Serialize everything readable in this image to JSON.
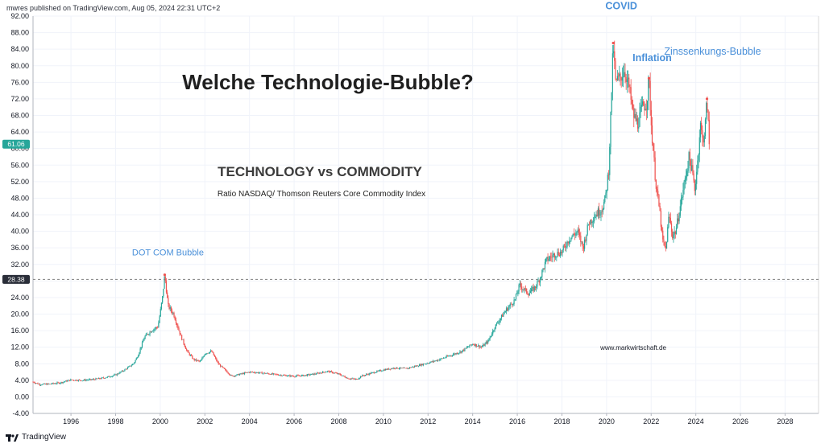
{
  "header": {
    "publisher_line": "mwres published on TradingView.com, Aug 05, 2024 22:31 UTC+2"
  },
  "footer": {
    "brand": "TradingView"
  },
  "colors": {
    "up": "#26a69a",
    "down": "#ef5350",
    "annotation": "#4a90d9",
    "title": "#1f1f1f",
    "last_price_badge": "#26a69a",
    "ref_badge": "#2a2e39",
    "dashed_line": "#7f7f7f"
  },
  "chart_data": {
    "type": "candlestick",
    "title": "Welche Technologie-Bubble?",
    "subtitle": "TECHNOLOGY vs COMMODITY",
    "description": "Ratio NASDAQ/ Thomson Reuters Core Commodity Index",
    "watermark": "www.markwirtschaft.de",
    "x_axis": {
      "range": [
        1994.3,
        2029.5
      ],
      "ticks": [
        "1996",
        "1998",
        "2000",
        "2002",
        "2004",
        "2006",
        "2008",
        "2010",
        "2012",
        "2014",
        "2016",
        "2018",
        "2020",
        "2022",
        "2024",
        "2026",
        "2028"
      ]
    },
    "y_axis": {
      "range": [
        -4,
        92
      ],
      "position": "left",
      "ticks": [
        "92.00",
        "88.00",
        "84.00",
        "80.00",
        "76.00",
        "72.00",
        "68.00",
        "64.00",
        "60.00",
        "56.00",
        "52.00",
        "48.00",
        "44.00",
        "40.00",
        "36.00",
        "32.00",
        "28.00",
        "24.00",
        "20.00",
        "16.00",
        "12.00",
        "8.00",
        "4.00",
        "0.00",
        "-4.00"
      ]
    },
    "last_price": {
      "value": 61.06,
      "label": "61.06"
    },
    "reference_line": {
      "value": 28.38,
      "label": "28.38",
      "style": "dashed"
    },
    "annotations": [
      {
        "text": "DOT COM Bubble",
        "x": 2000.2,
        "y": 29.5
      },
      {
        "text": "COVID",
        "x": 2020.3,
        "y": 85.5
      },
      {
        "text": "Inflation",
        "x": 2021.9,
        "y": 77.0
      },
      {
        "text": "Zinssenkungs-Bubble",
        "x": 2024.5,
        "y": 72.0
      }
    ],
    "path": [
      [
        1994.3,
        3.6
      ],
      [
        1994.6,
        3.0
      ],
      [
        1995.0,
        3.1
      ],
      [
        1995.5,
        3.4
      ],
      [
        1996.0,
        4.1
      ],
      [
        1996.5,
        4.0
      ],
      [
        1997.0,
        4.2
      ],
      [
        1997.5,
        4.6
      ],
      [
        1998.0,
        5.3
      ],
      [
        1998.4,
        6.5
      ],
      [
        1998.8,
        8.0
      ],
      [
        1999.0,
        10.0
      ],
      [
        1999.3,
        14.5
      ],
      [
        1999.6,
        16.0
      ],
      [
        1999.9,
        17.0
      ],
      [
        2000.1,
        24.0
      ],
      [
        2000.2,
        29.5
      ],
      [
        2000.35,
        22.0
      ],
      [
        2000.6,
        20.0
      ],
      [
        2000.9,
        15.0
      ],
      [
        2001.2,
        11.0
      ],
      [
        2001.5,
        9.0
      ],
      [
        2001.8,
        8.5
      ],
      [
        2002.0,
        10.5
      ],
      [
        2002.3,
        11.0
      ],
      [
        2002.6,
        8.0
      ],
      [
        2002.9,
        6.5
      ],
      [
        2003.2,
        5.0
      ],
      [
        2003.6,
        5.5
      ],
      [
        2004.0,
        6.0
      ],
      [
        2004.5,
        5.8
      ],
      [
        2005.0,
        5.5
      ],
      [
        2005.5,
        5.2
      ],
      [
        2006.0,
        5.0
      ],
      [
        2006.5,
        5.2
      ],
      [
        2007.0,
        5.6
      ],
      [
        2007.5,
        6.2
      ],
      [
        2008.0,
        5.5
      ],
      [
        2008.4,
        4.5
      ],
      [
        2008.8,
        4.2
      ],
      [
        2009.0,
        5.0
      ],
      [
        2009.5,
        5.8
      ],
      [
        2010.0,
        6.5
      ],
      [
        2010.5,
        7.0
      ],
      [
        2011.0,
        6.8
      ],
      [
        2011.5,
        7.5
      ],
      [
        2012.0,
        8.2
      ],
      [
        2012.5,
        9.0
      ],
      [
        2013.0,
        10.0
      ],
      [
        2013.5,
        11.0
      ],
      [
        2014.0,
        12.8
      ],
      [
        2014.4,
        12.0
      ],
      [
        2014.7,
        13.5
      ],
      [
        2015.0,
        17.0
      ],
      [
        2015.5,
        21.0
      ],
      [
        2015.9,
        23.5
      ],
      [
        2016.1,
        27.0
      ],
      [
        2016.5,
        25.0
      ],
      [
        2016.8,
        26.5
      ],
      [
        2017.0,
        28.5
      ],
      [
        2017.3,
        33.0
      ],
      [
        2017.7,
        34.5
      ],
      [
        2018.0,
        35.0
      ],
      [
        2018.3,
        38.0
      ],
      [
        2018.7,
        40.0
      ],
      [
        2018.95,
        36.0
      ],
      [
        2019.2,
        42.0
      ],
      [
        2019.5,
        44.0
      ],
      [
        2019.8,
        45.5
      ],
      [
        2019.95,
        48.0
      ],
      [
        2020.1,
        55.0
      ],
      [
        2020.2,
        70.0
      ],
      [
        2020.3,
        85.5
      ],
      [
        2020.4,
        76.0
      ],
      [
        2020.6,
        77.0
      ],
      [
        2020.8,
        79.0
      ],
      [
        2021.0,
        75.0
      ],
      [
        2021.2,
        68.0
      ],
      [
        2021.4,
        66.0
      ],
      [
        2021.6,
        70.0
      ],
      [
        2021.8,
        71.0
      ],
      [
        2021.9,
        77.0
      ],
      [
        2022.0,
        66.0
      ],
      [
        2022.2,
        52.0
      ],
      [
        2022.4,
        44.0
      ],
      [
        2022.5,
        38.0
      ],
      [
        2022.65,
        35.5
      ],
      [
        2022.8,
        44.0
      ],
      [
        2022.95,
        39.0
      ],
      [
        2023.1,
        40.0
      ],
      [
        2023.3,
        46.0
      ],
      [
        2023.5,
        52.0
      ],
      [
        2023.7,
        58.0
      ],
      [
        2023.85,
        54.0
      ],
      [
        2023.95,
        50.0
      ],
      [
        2024.1,
        58.0
      ],
      [
        2024.2,
        66.0
      ],
      [
        2024.3,
        62.0
      ],
      [
        2024.4,
        64.0
      ],
      [
        2024.5,
        72.0
      ],
      [
        2024.6,
        61.06
      ]
    ]
  }
}
